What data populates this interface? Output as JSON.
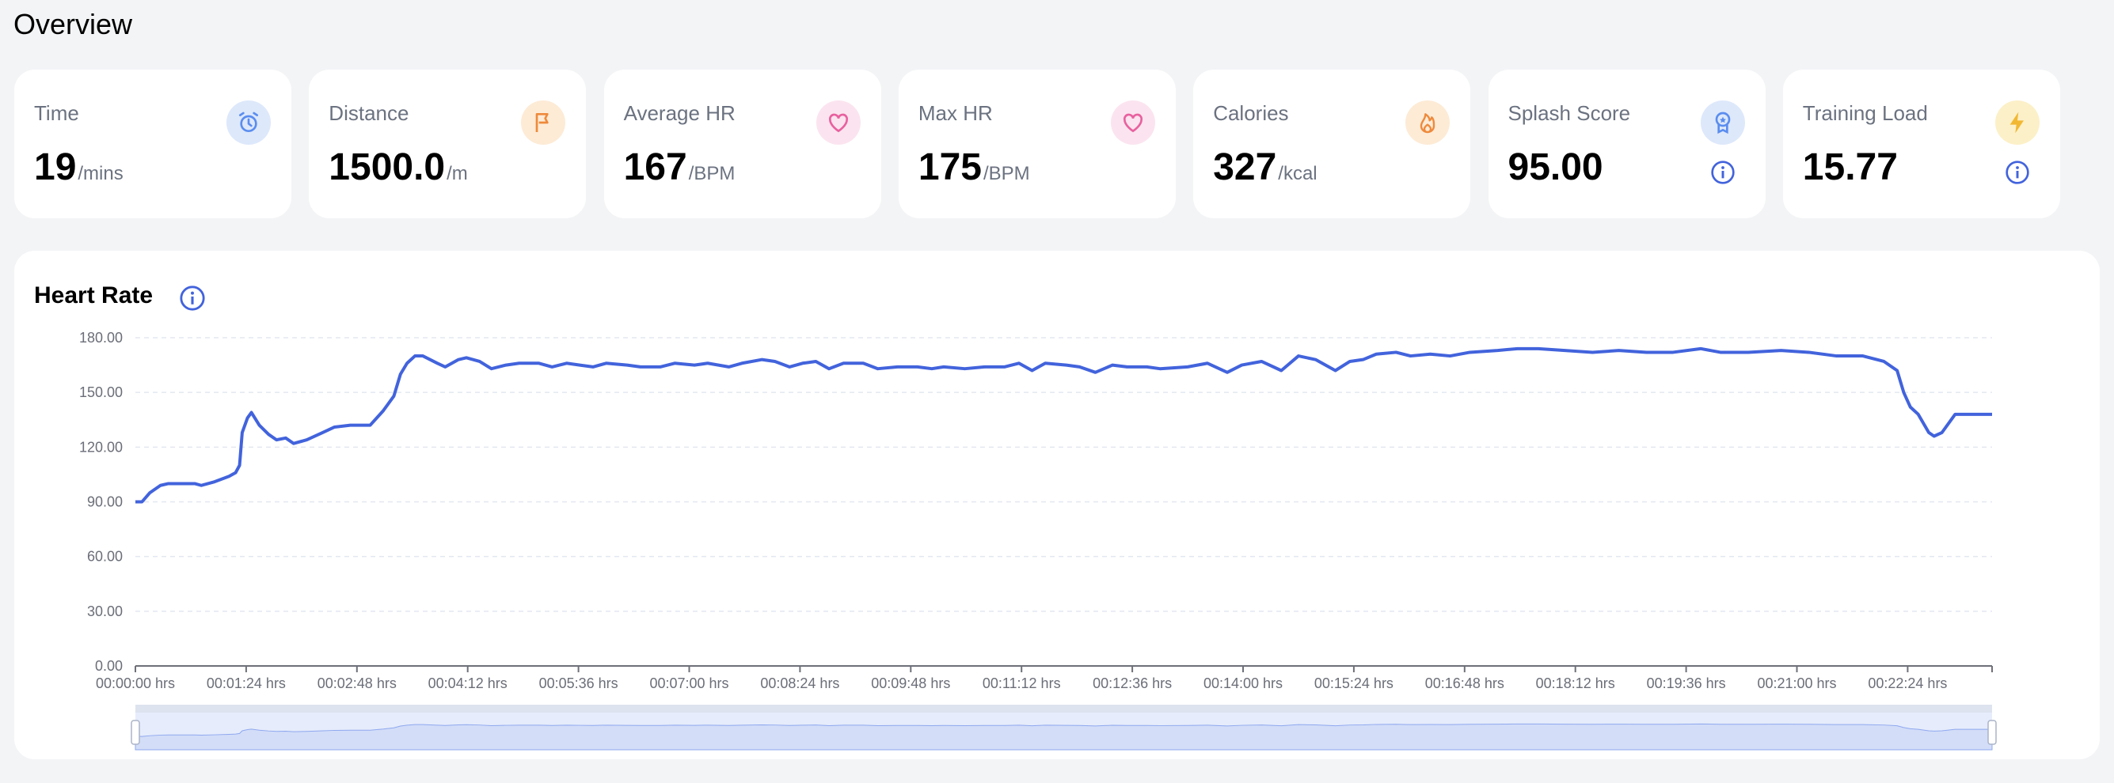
{
  "page_title": "Overview",
  "cards": [
    {
      "label": "Time",
      "value": "19",
      "unit": "/mins",
      "icon": "alarm-clock-icon",
      "icon_color": "#5b8def",
      "icon_bg": "#dde8fb"
    },
    {
      "label": "Distance",
      "value": "1500.0",
      "unit": "/m",
      "icon": "flag-icon",
      "icon_color": "#ee8a3c",
      "icon_bg": "#fdebd6"
    },
    {
      "label": "Average HR",
      "value": "167",
      "unit": "/BPM",
      "icon": "heart-icon",
      "icon_color": "#e8619f",
      "icon_bg": "#fbe4ef"
    },
    {
      "label": "Max HR",
      "value": "175",
      "unit": "/BPM",
      "icon": "heart-icon",
      "icon_color": "#e8619f",
      "icon_bg": "#fbe4ef"
    },
    {
      "label": "Calories",
      "value": "327",
      "unit": "/kcal",
      "icon": "flame-icon",
      "icon_color": "#ee8a3c",
      "icon_bg": "#fdebd6"
    },
    {
      "label": "Splash Score",
      "value": "95.00",
      "unit": "",
      "icon": "award-ribbon-icon",
      "icon_color": "#5b8def",
      "icon_bg": "#dde8fb",
      "info": true
    },
    {
      "label": "Training Load",
      "value": "15.77",
      "unit": "",
      "icon": "lightning-icon",
      "icon_color": "#f2b833",
      "icon_bg": "#fcf0c8",
      "info": true
    }
  ],
  "accent": "#4263dc",
  "chart_data": {
    "type": "line",
    "title": "Heart Rate",
    "xlabel": "",
    "ylabel": "",
    "ylim": [
      0,
      180
    ],
    "xlim": [
      0,
      1408
    ],
    "yticks": [
      "0.00",
      "30.00",
      "60.00",
      "90.00",
      "120.00",
      "150.00",
      "180.00"
    ],
    "xticks": [
      "00:00:00 hrs",
      "00:01:24 hrs",
      "00:02:48 hrs",
      "00:04:12 hrs",
      "00:05:36 hrs",
      "00:07:00 hrs",
      "00:08:24 hrs",
      "00:09:48 hrs",
      "00:11:12 hrs",
      "00:12:36 hrs",
      "00:14:00 hrs",
      "00:15:24 hrs",
      "00:16:48 hrs",
      "00:18:12 hrs",
      "00:19:36 hrs",
      "00:21:00 hrs",
      "00:22:24 hrs"
    ],
    "xtick_step_seconds": 84,
    "grid": true,
    "series": [
      {
        "name": "Heart Rate",
        "color": "#4263dc",
        "x": [
          0,
          5,
          11,
          19,
          25,
          45,
          50,
          60,
          71,
          76,
          79,
          81,
          85,
          88,
          94,
          101,
          107,
          114,
          120,
          130,
          142,
          151,
          163,
          178,
          188,
          196,
          201,
          206,
          212,
          218,
          229,
          235,
          245,
          251,
          261,
          270,
          281,
          291,
          306,
          316,
          327,
          337,
          347,
          357,
          373,
          383,
          398,
          409,
          424,
          434,
          450,
          460,
          475,
          485,
          496,
          506,
          516,
          526,
          537,
          552,
          563,
          578,
          593,
          604,
          613,
          629,
          644,
          659,
          670,
          680,
          690,
          706,
          716,
          728,
          741,
          752,
          767,
          777,
          798,
          813,
          828,
          839,
          854,
          869,
          882,
          895,
          910,
          921,
          931,
          941,
          956,
          967,
          982,
          997,
          1012,
          1033,
          1048,
          1064,
          1084,
          1105,
          1125,
          1146,
          1166,
          1187,
          1202,
          1223,
          1248,
          1269,
          1290,
          1310,
          1326,
          1336,
          1341,
          1346,
          1352,
          1360,
          1364,
          1370,
          1380,
          1408
        ],
        "y": [
          90,
          90,
          95,
          99,
          100,
          100,
          99,
          101,
          104,
          106,
          110,
          128,
          136,
          139,
          132,
          127,
          124,
          125,
          122,
          124,
          128,
          131,
          132,
          132,
          140,
          148,
          160,
          166,
          170,
          170,
          166,
          164,
          168,
          169,
          167,
          163,
          165,
          166,
          166,
          164,
          166,
          165,
          164,
          166,
          165,
          164,
          164,
          166,
          165,
          166,
          164,
          166,
          168,
          167,
          164,
          166,
          167,
          163,
          166,
          166,
          163,
          164,
          164,
          163,
          164,
          163,
          164,
          164,
          166,
          162,
          166,
          165,
          164,
          161,
          165,
          164,
          164,
          163,
          164,
          166,
          161,
          165,
          167,
          162,
          170,
          168,
          162,
          167,
          168,
          171,
          172,
          170,
          171,
          170,
          172,
          173,
          174,
          174,
          173,
          172,
          173,
          172,
          172,
          174,
          172,
          172,
          173,
          172,
          170,
          170,
          167,
          162,
          150,
          142,
          138,
          128,
          126,
          128,
          138,
          138
        ]
      }
    ]
  }
}
